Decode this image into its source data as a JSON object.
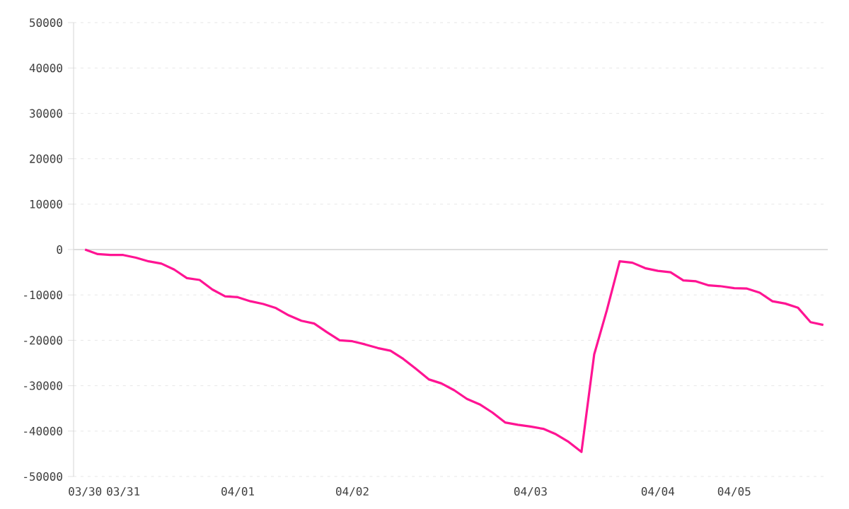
{
  "chart_data": {
    "type": "line",
    "categories": [
      "03/30",
      null,
      null,
      "03/31",
      null,
      null,
      null,
      null,
      null,
      null,
      null,
      null,
      "04/01",
      null,
      null,
      null,
      null,
      null,
      null,
      null,
      null,
      "04/02",
      null,
      null,
      null,
      null,
      null,
      null,
      null,
      null,
      null,
      null,
      null,
      null,
      null,
      "04/03",
      null,
      null,
      null,
      null,
      null,
      null,
      null,
      null,
      null,
      "04/04",
      null,
      null,
      null,
      null,
      null,
      "04/05",
      null,
      null,
      null,
      null,
      null,
      null,
      null
    ],
    "series": [
      {
        "color": "#ff1493",
        "values": [
          0,
          -1000,
          -1200,
          -1200,
          -1800,
          -2600,
          -3100,
          -4400,
          -6300,
          -6700,
          -8800,
          -10300,
          -10500,
          -11400,
          -12000,
          -12900,
          -14500,
          -15700,
          -16300,
          -18200,
          -20000,
          -20200,
          -20900,
          -21700,
          -22300,
          -24100,
          -26300,
          -28600,
          -29500,
          -31000,
          -32900,
          -34100,
          -35900,
          -38100,
          -38600,
          -39000,
          -39500,
          -40700,
          -42400,
          -44600,
          -23100,
          -13300,
          -2600,
          -2900,
          -4100,
          -4700,
          -5000,
          -6800,
          -7000,
          -7900,
          -8100,
          -8500,
          -8600,
          -9500,
          -11400,
          -11900,
          -12800,
          -16000,
          -16600
        ]
      }
    ],
    "ylim": [
      -50000,
      50000
    ],
    "yticks": [
      -50000,
      -40000,
      -30000,
      -20000,
      -10000,
      0,
      10000,
      20000,
      30000,
      40000,
      50000
    ],
    "grid": "y",
    "ref_lines": [
      {
        "axis": "y",
        "value": 0,
        "color": "#dddddd"
      }
    ]
  }
}
